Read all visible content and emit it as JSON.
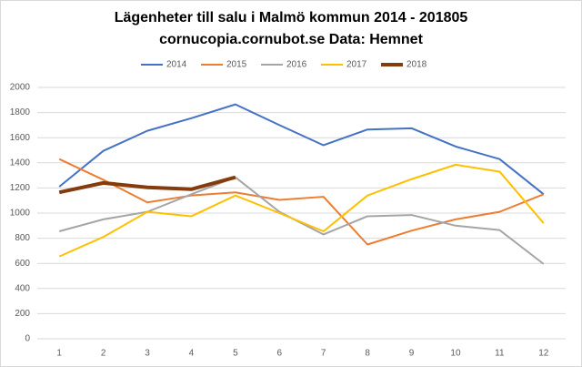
{
  "chart_data": {
    "type": "line",
    "title": "Lägenheter till salu i Malmö kommun 2014 - 201805",
    "subtitle": "cornucopia.cornubot.se Data: Hemnet",
    "categories": [
      1,
      2,
      3,
      4,
      5,
      6,
      7,
      8,
      9,
      10,
      11,
      12
    ],
    "series": [
      {
        "name": "2014",
        "color": "#4472c4",
        "line_width": 2,
        "values": [
          1210,
          1495,
          1655,
          1755,
          1865,
          1700,
          1540,
          1665,
          1675,
          1530,
          1430,
          1150
        ]
      },
      {
        "name": "2015",
        "color": "#ed7d31",
        "line_width": 2,
        "values": [
          1430,
          1265,
          1085,
          1140,
          1165,
          1105,
          1130,
          750,
          860,
          950,
          1010,
          1150
        ]
      },
      {
        "name": "2016",
        "color": "#a5a5a5",
        "line_width": 2,
        "values": [
          855,
          950,
          1010,
          1150,
          1285,
          1010,
          830,
          975,
          985,
          900,
          865,
          595
        ]
      },
      {
        "name": "2017",
        "color": "#ffc000",
        "line_width": 2,
        "values": [
          655,
          810,
          1010,
          975,
          1140,
          1000,
          855,
          1140,
          1270,
          1385,
          1330,
          920
        ]
      },
      {
        "name": "2018",
        "color": "#843c0c",
        "line_width": 4,
        "values": [
          1165,
          1240,
          1205,
          1190,
          1285,
          null,
          null,
          null,
          null,
          null,
          null,
          null
        ]
      }
    ],
    "ylim": [
      0,
      2000
    ],
    "yticks": [
      0,
      200,
      400,
      600,
      800,
      1000,
      1200,
      1400,
      1600,
      1800,
      2000
    ],
    "grid": true,
    "legend": "top"
  }
}
